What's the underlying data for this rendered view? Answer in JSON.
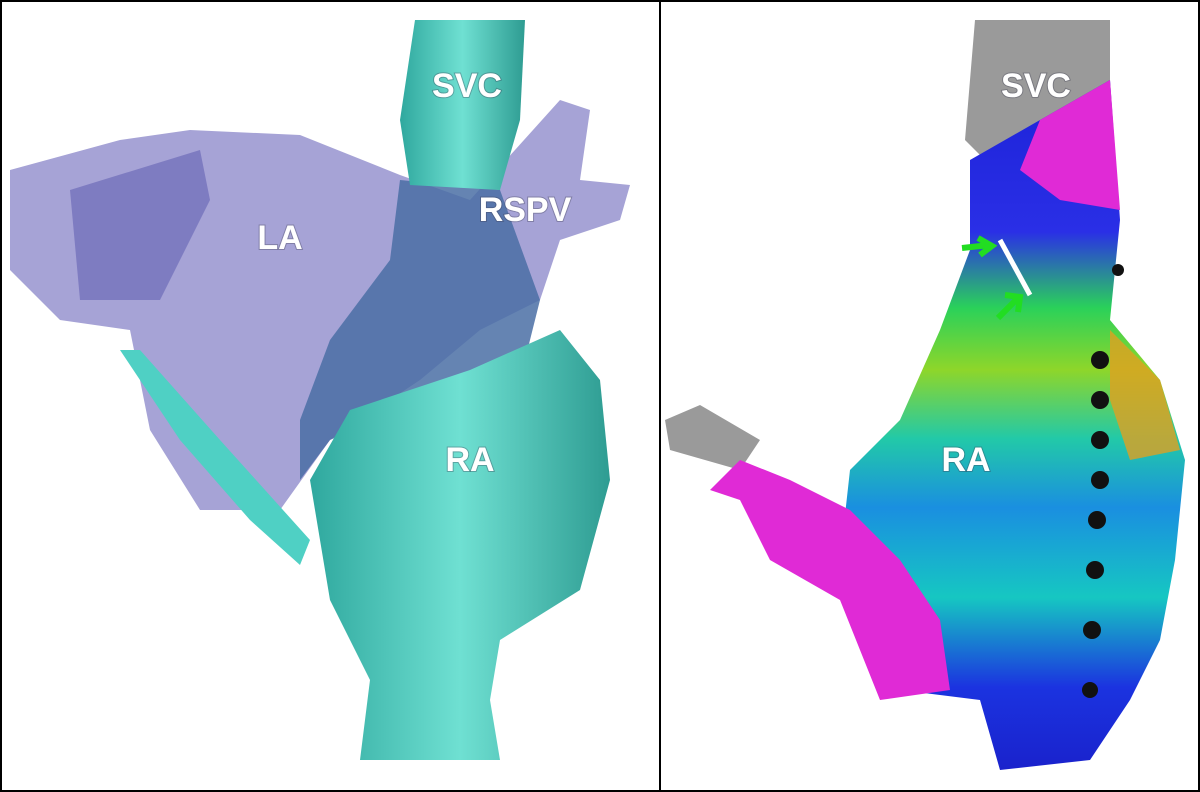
{
  "panels": [
    {
      "labels": [
        "SVC",
        "LA",
        "RSPV",
        "RA"
      ]
    },
    {
      "labels": [
        "SVC",
        "RA"
      ]
    }
  ]
}
